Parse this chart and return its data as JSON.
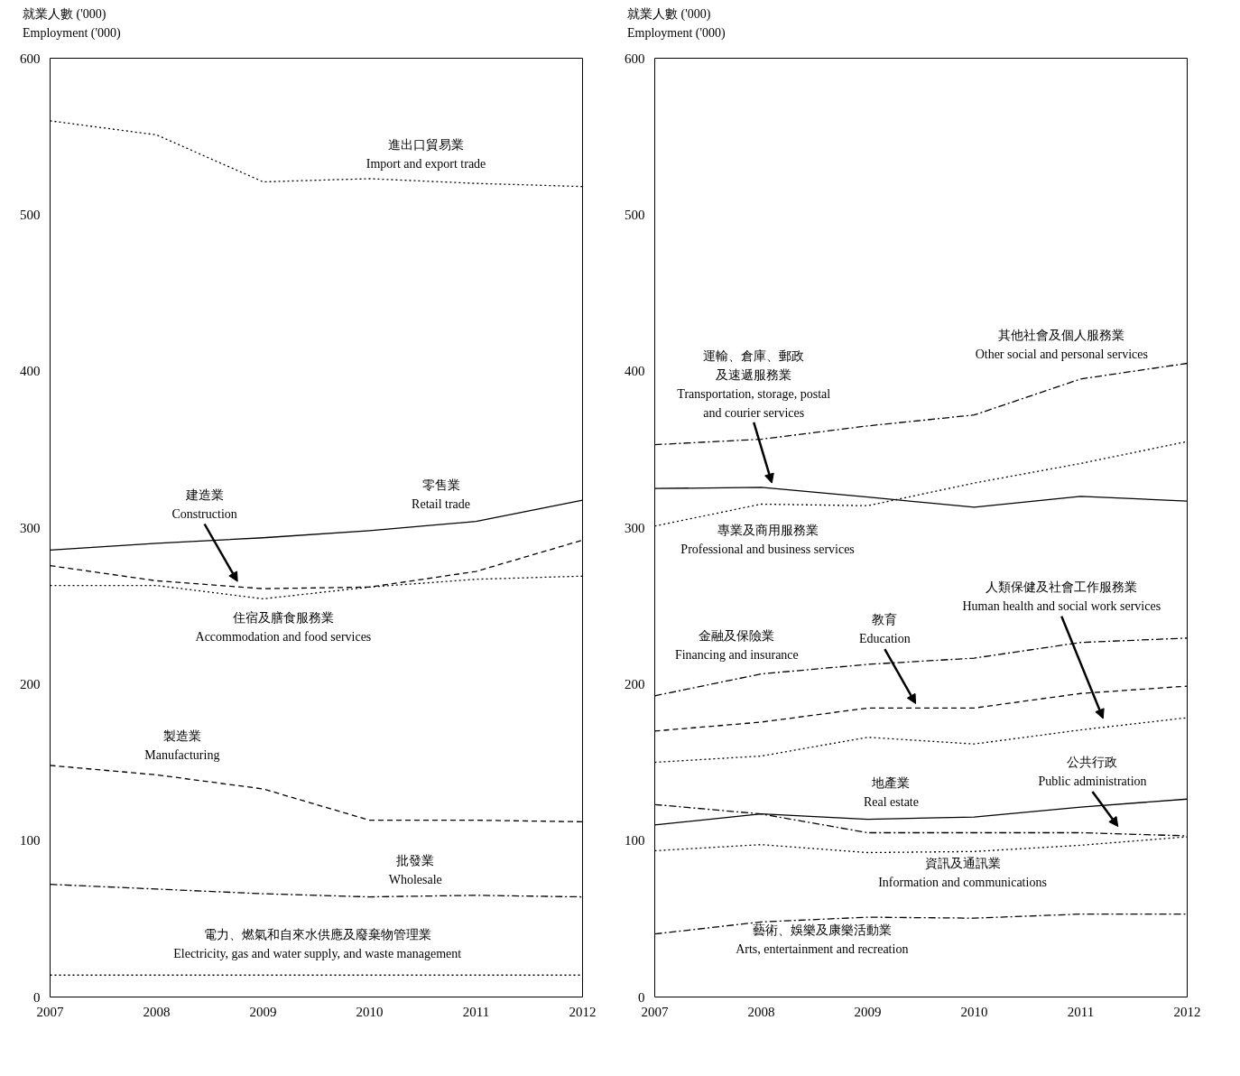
{
  "chart_data": [
    {
      "type": "line",
      "ylabel": "就業人數 ('000)\nEmployment ('000)",
      "x": [
        2007,
        2008,
        2009,
        2010,
        2011,
        2012
      ],
      "xlim": [
        2007,
        2012
      ],
      "xticks": [
        2007,
        2008,
        2009,
        2010,
        2011,
        2012
      ],
      "ylim": [
        0,
        600
      ],
      "yticks": [
        0,
        100,
        200,
        300,
        400,
        500,
        600
      ],
      "grid": false,
      "marker": "none",
      "series": [
        {
          "color": "#000000",
          "line_style": "dotted",
          "values": [
            560,
            551,
            521,
            523,
            520,
            518
          ]
        },
        {
          "color": "#000000",
          "line_style": "solid",
          "values": [
            285.7,
            290,
            293.5,
            298,
            304,
            317.5
          ]
        },
        {
          "color": "#000000",
          "line_style": "dashed",
          "values": [
            275.7,
            266,
            261,
            262,
            272,
            292
          ]
        },
        {
          "color": "#000000",
          "line_style": "dotted",
          "values": [
            263,
            263,
            254.5,
            262,
            267,
            269
          ]
        },
        {
          "color": "#000000",
          "line_style": "dashed",
          "values": [
            148,
            142,
            133,
            113,
            113,
            112
          ]
        },
        {
          "color": "#000000",
          "line_style": "dashdot",
          "values": [
            72,
            69,
            66,
            64,
            65,
            64
          ]
        },
        {
          "color": "#000000",
          "line_style": "dotted",
          "values": [
            14,
            14,
            14,
            14,
            14,
            14
          ]
        }
      ],
      "annotations": [
        "進出口貿易業\nImport and export trade",
        "零售業\nRetail trade",
        "建造業\nConstruction",
        "住宿及膳食服務業\nAccommodation and food services",
        "製造業\nManufacturing",
        "批發業\nWholesale",
        "電力、燃氣和自來水供應及廢棄物管理業\nElectricity, gas and water supply, and waste management"
      ]
    },
    {
      "type": "line",
      "ylabel": "就業人數 ('000)\nEmployment ('000)",
      "x": [
        2007,
        2008,
        2009,
        2010,
        2011,
        2012
      ],
      "xlim": [
        2007,
        2012
      ],
      "xticks": [
        2007,
        2008,
        2009,
        2010,
        2011,
        2012
      ],
      "ylim": [
        0,
        600
      ],
      "yticks": [
        0,
        100,
        200,
        300,
        400,
        500,
        600
      ],
      "grid": false,
      "marker": "none",
      "series": [
        {
          "color": "#000000",
          "line_style": "dashdot",
          "values": [
            353,
            356.5,
            365,
            372,
            395,
            405
          ]
        },
        {
          "color": "#000000",
          "line_style": "dotted",
          "values": [
            301,
            315,
            314,
            328.5,
            341,
            355
          ]
        },
        {
          "color": "#000000",
          "line_style": "solid",
          "values": [
            325,
            325.7,
            319.5,
            313,
            320,
            317
          ]
        },
        {
          "color": "#000000",
          "line_style": "dashdot",
          "values": [
            192.5,
            206.5,
            212.6,
            216.6,
            226.6,
            229.4
          ]
        },
        {
          "color": "#000000",
          "line_style": "dashed",
          "values": [
            170,
            175.7,
            184.7,
            184.7,
            194,
            198.7
          ]
        },
        {
          "color": "#000000",
          "line_style": "dotted",
          "values": [
            150,
            154,
            166,
            161.7,
            170.7,
            178.5
          ]
        },
        {
          "color": "#000000",
          "line_style": "solid",
          "values": [
            110,
            117,
            113.6,
            115,
            121.4,
            126.5
          ]
        },
        {
          "color": "#000000",
          "line_style": "dashdot",
          "values": [
            123,
            117,
            105,
            105,
            105,
            103
          ]
        },
        {
          "color": "#000000",
          "line_style": "dotted",
          "values": [
            93.5,
            97.4,
            92.3,
            93,
            97,
            102.4
          ]
        },
        {
          "color": "#000000",
          "line_style": "dashdot",
          "values": [
            40.3,
            48,
            51,
            50.4,
            53,
            53
          ]
        }
      ],
      "annotations": [
        "其他社會及個人服務業\nOther social and personal services",
        "運輸、倉庫、郵政及速遞服務業\nTransportation, storage, postal and courier services",
        "專業及商用服務業\nProfessional and business services",
        "人類保健及社會工作服務業\nHuman health and social work services",
        "教育\nEducation",
        "金融及保險業\nFinancing and insurance",
        "地產業\nReal estate",
        "公共行政\nPublic administration",
        "資訊及通訊業\nInformation and communications",
        "藝術、娛樂及康樂活動業\nArts, entertainment and recreation"
      ]
    }
  ]
}
